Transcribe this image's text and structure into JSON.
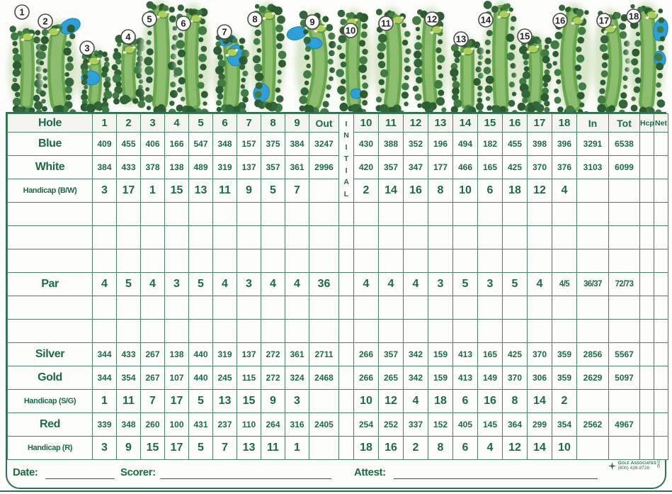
{
  "colors": {
    "accent": "#2f7050",
    "text": "#1d6b44",
    "border": "#4a8164",
    "fairway": "#69a74f",
    "fairway_light": "#93c073",
    "trees1": "#33663a",
    "trees2": "#2d5c33",
    "trees3": "#417c45",
    "halo": "#d8e6ca",
    "green_fill": "#accf5e",
    "green_ring": "#4e8c39",
    "bunker": "#f2ecd0",
    "water": "#2f9fd8",
    "water_edge": "#1b82b8",
    "badge_ring": "#4a4a4a",
    "badge_text": "#222222"
  },
  "holes": [
    {
      "number": "1"
    },
    {
      "number": "2"
    },
    {
      "number": "3"
    },
    {
      "number": "4"
    },
    {
      "number": "5"
    },
    {
      "number": "6"
    },
    {
      "number": "7"
    },
    {
      "number": "8"
    },
    {
      "number": "9"
    },
    {
      "number": "10"
    },
    {
      "number": "11"
    },
    {
      "number": "12"
    },
    {
      "number": "13"
    },
    {
      "number": "14"
    },
    {
      "number": "15"
    },
    {
      "number": "16"
    },
    {
      "number": "17"
    },
    {
      "number": "18"
    }
  ],
  "scorecard": {
    "header": {
      "label": "Hole",
      "front": [
        "1",
        "2",
        "3",
        "4",
        "5",
        "6",
        "7",
        "8",
        "9"
      ],
      "out": "Out",
      "initial_letters": [
        "I",
        "N",
        "I",
        "T",
        "I",
        "A",
        "L"
      ],
      "back": [
        "10",
        "11",
        "12",
        "13",
        "14",
        "15",
        "16",
        "17",
        "18"
      ],
      "in": "In",
      "tot": "Tot",
      "hcp": "Hcp",
      "net": "Net"
    },
    "rows": [
      {
        "label": "Blue",
        "type": "tee",
        "front": [
          "409",
          "455",
          "406",
          "166",
          "547",
          "348",
          "157",
          "375",
          "384"
        ],
        "out": "3247",
        "back": [
          "430",
          "388",
          "352",
          "196",
          "494",
          "182",
          "455",
          "398",
          "396"
        ],
        "in": "3291",
        "tot": "6538",
        "hcp": "",
        "net": ""
      },
      {
        "label": "White",
        "type": "tee",
        "front": [
          "384",
          "433",
          "378",
          "138",
          "489",
          "319",
          "137",
          "357",
          "361"
        ],
        "out": "2996",
        "back": [
          "420",
          "357",
          "347",
          "177",
          "466",
          "165",
          "425",
          "370",
          "376"
        ],
        "in": "3103",
        "tot": "6099",
        "hcp": "",
        "net": ""
      },
      {
        "label": "Handicap (B/W)",
        "type": "handicap",
        "front": [
          "3",
          "17",
          "1",
          "15",
          "13",
          "11",
          "9",
          "5",
          "7"
        ],
        "out": "",
        "back": [
          "2",
          "14",
          "16",
          "8",
          "10",
          "6",
          "18",
          "12",
          "4"
        ],
        "in": "",
        "tot": "",
        "hcp": "",
        "net": ""
      },
      {
        "label": "",
        "type": "blank",
        "front": [
          "",
          "",
          "",
          "",
          "",
          "",
          "",
          "",
          ""
        ],
        "out": "",
        "back": [
          "",
          "",
          "",
          "",
          "",
          "",
          "",
          "",
          ""
        ],
        "in": "",
        "tot": "",
        "hcp": "",
        "net": ""
      },
      {
        "label": "",
        "type": "blank",
        "front": [
          "",
          "",
          "",
          "",
          "",
          "",
          "",
          "",
          ""
        ],
        "out": "",
        "back": [
          "",
          "",
          "",
          "",
          "",
          "",
          "",
          "",
          ""
        ],
        "in": "",
        "tot": "",
        "hcp": "",
        "net": ""
      },
      {
        "label": "",
        "type": "blank",
        "front": [
          "",
          "",
          "",
          "",
          "",
          "",
          "",
          "",
          ""
        ],
        "out": "",
        "back": [
          "",
          "",
          "",
          "",
          "",
          "",
          "",
          "",
          ""
        ],
        "in": "",
        "tot": "",
        "hcp": "",
        "net": ""
      },
      {
        "label": "Par",
        "type": "par",
        "front": [
          "4",
          "5",
          "4",
          "3",
          "5",
          "4",
          "3",
          "4",
          "4"
        ],
        "out": "36",
        "back": [
          "4",
          "4",
          "4",
          "3",
          "5",
          "3",
          "5",
          "4",
          "4/5"
        ],
        "in": "36/37",
        "tot": "72/73",
        "hcp": "",
        "net": ""
      },
      {
        "label": "",
        "type": "blank",
        "front": [
          "",
          "",
          "",
          "",
          "",
          "",
          "",
          "",
          ""
        ],
        "out": "",
        "back": [
          "",
          "",
          "",
          "",
          "",
          "",
          "",
          "",
          ""
        ],
        "in": "",
        "tot": "",
        "hcp": "",
        "net": ""
      },
      {
        "label": "",
        "type": "blank",
        "front": [
          "",
          "",
          "",
          "",
          "",
          "",
          "",
          "",
          ""
        ],
        "out": "",
        "back": [
          "",
          "",
          "",
          "",
          "",
          "",
          "",
          "",
          ""
        ],
        "in": "",
        "tot": "",
        "hcp": "",
        "net": ""
      },
      {
        "label": "Silver",
        "type": "tee",
        "front": [
          "344",
          "433",
          "267",
          "138",
          "440",
          "319",
          "137",
          "272",
          "361"
        ],
        "out": "2711",
        "back": [
          "266",
          "357",
          "342",
          "159",
          "413",
          "165",
          "425",
          "370",
          "359"
        ],
        "in": "2856",
        "tot": "5567",
        "hcp": "",
        "net": ""
      },
      {
        "label": "Gold",
        "type": "tee",
        "front": [
          "344",
          "354",
          "267",
          "107",
          "440",
          "245",
          "115",
          "272",
          "324"
        ],
        "out": "2468",
        "back": [
          "266",
          "265",
          "342",
          "159",
          "413",
          "149",
          "370",
          "306",
          "359"
        ],
        "in": "2629",
        "tot": "5097",
        "hcp": "",
        "net": ""
      },
      {
        "label": "Handicap (S/G)",
        "type": "handicap",
        "front": [
          "1",
          "11",
          "7",
          "17",
          "5",
          "13",
          "15",
          "9",
          "3"
        ],
        "out": "",
        "back": [
          "10",
          "12",
          "4",
          "18",
          "6",
          "16",
          "8",
          "14",
          "2"
        ],
        "in": "",
        "tot": "",
        "hcp": "",
        "net": ""
      },
      {
        "label": "Red",
        "type": "tee",
        "front": [
          "339",
          "348",
          "260",
          "100",
          "431",
          "237",
          "110",
          "264",
          "316"
        ],
        "out": "2405",
        "back": [
          "254",
          "252",
          "337",
          "152",
          "405",
          "145",
          "364",
          "299",
          "354"
        ],
        "in": "2562",
        "tot": "4967",
        "hcp": "",
        "net": ""
      },
      {
        "label": "Handicap (R)",
        "type": "handicap",
        "front": [
          "3",
          "9",
          "15",
          "17",
          "5",
          "7",
          "13",
          "11",
          "1"
        ],
        "out": "",
        "back": [
          "18",
          "16",
          "2",
          "8",
          "6",
          "4",
          "12",
          "14",
          "10"
        ],
        "in": "",
        "tot": "",
        "hcp": "",
        "net": ""
      }
    ]
  },
  "footer": {
    "date_label": "Date:",
    "scorer_label": "Scorer:",
    "attest_label": "Attest:",
    "brand": "Golf Associates",
    "phone": "(800) 438-8726",
    "form_code": "0742"
  }
}
